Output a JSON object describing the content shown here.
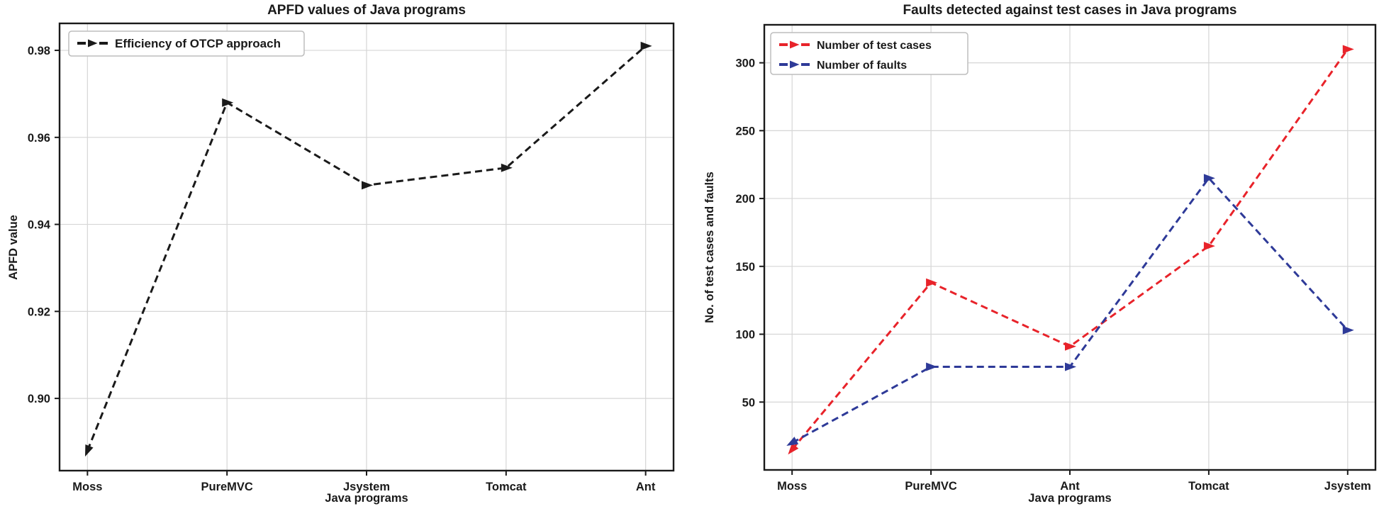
{
  "figure": {
    "background": "#ffffff",
    "grid_color": "#d6d6d6",
    "axis_color": "#1a1a1a"
  },
  "chart_data": [
    {
      "type": "line",
      "title": "APFD values of Java programs",
      "xlabel": "Java programs",
      "ylabel": "APFD value",
      "categories": [
        "Moss",
        "PureMVC",
        "Jsystem",
        "Tomcat",
        "Ant"
      ],
      "ylim": [
        0.8834,
        0.9862
      ],
      "yticks": [
        0.9,
        0.92,
        0.94,
        0.96,
        0.98
      ],
      "ytick_labels": [
        "0.90",
        "0.92",
        "0.94",
        "0.96",
        "0.98"
      ],
      "grid": true,
      "legend_position": "upper-left",
      "series": [
        {
          "name": "Efficiency of OTCP approach",
          "color": "#1a1a1a",
          "linestyle": "dashed",
          "marker": "triangle-right",
          "values": [
            0.888,
            0.968,
            0.949,
            0.953,
            0.981
          ]
        }
      ]
    },
    {
      "type": "line",
      "title": "Faults detected against test cases in Java programs",
      "xlabel": "Java programs",
      "ylabel": "No. of test cases and faults",
      "categories": [
        "Moss",
        "PureMVC",
        "Ant",
        "Tomcat",
        "Jsystem"
      ],
      "ylim": [
        0,
        328
      ],
      "yticks": [
        50,
        100,
        150,
        200,
        250,
        300
      ],
      "ytick_labels": [
        "50",
        "100",
        "150",
        "200",
        "250",
        "300"
      ],
      "grid": true,
      "legend_position": "upper-left",
      "series": [
        {
          "name": "Number of test cases",
          "color": "#e8232a",
          "linestyle": "dashed",
          "marker": "triangle-right",
          "values": [
            15,
            138,
            91,
            165,
            310
          ]
        },
        {
          "name": "Number of faults",
          "color": "#2e3a98",
          "linestyle": "dashed",
          "marker": "triangle-right",
          "values": [
            20,
            76,
            76,
            215,
            103
          ]
        }
      ]
    }
  ]
}
